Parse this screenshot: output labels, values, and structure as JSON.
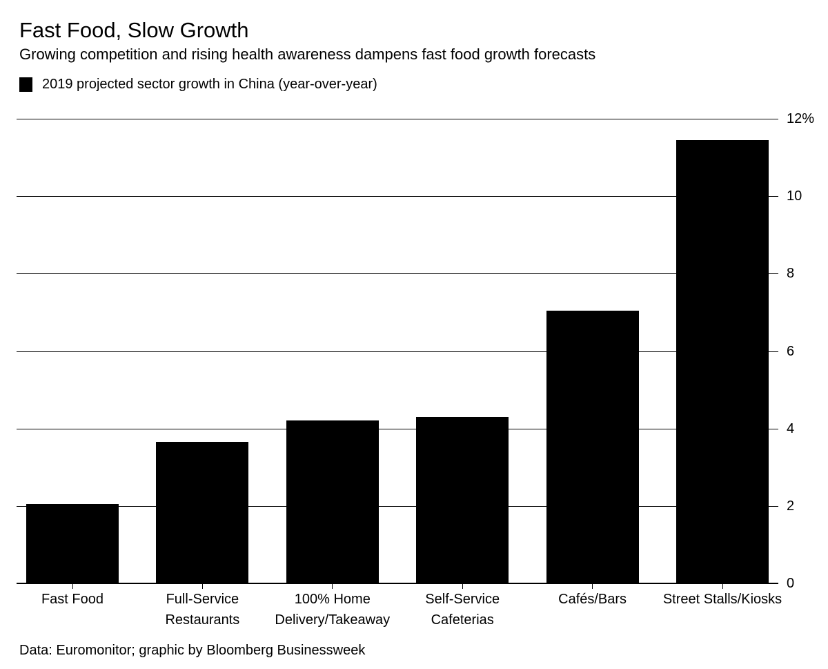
{
  "title": "Fast Food, Slow Growth",
  "subtitle": "Growing competition and rising health awareness dampens fast food growth forecasts",
  "legend": {
    "label": "2019 projected sector growth in China (year-over-year)",
    "swatch_color": "#000000"
  },
  "source": "Data: Euromonitor; graphic by Bloomberg Businessweek",
  "chart_data": {
    "type": "bar",
    "title": "Fast Food, Slow Growth",
    "subtitle": "Growing competition and rising health awareness dampens fast food growth forecasts",
    "series_name": "2019 projected sector growth in China (year-over-year)",
    "categories": [
      "Fast Food",
      "Full-Service Restaurants",
      "100% Home Delivery/Takeaway",
      "Self-Service Cafeterias",
      "Cafés/Bars",
      "Street Stalls/Kiosks"
    ],
    "category_lines": [
      [
        "Fast Food"
      ],
      [
        "Full-Service",
        "Restaurants"
      ],
      [
        "100% Home",
        "Delivery/Takeaway"
      ],
      [
        "Self-Service",
        "Cafeterias"
      ],
      [
        "Cafés/Bars"
      ],
      [
        "Street Stalls/Kiosks"
      ]
    ],
    "values": [
      2.05,
      3.65,
      4.2,
      4.3,
      7.05,
      11.45
    ],
    "xlabel": "",
    "ylabel": "",
    "ylim": [
      0,
      12
    ],
    "yticks": [
      0,
      2,
      4,
      6,
      8,
      10,
      12
    ],
    "ytick_labels": [
      "0",
      "2",
      "4",
      "6",
      "8",
      "10",
      "12%"
    ],
    "bar_color": "#000000",
    "grid_color": "#000000",
    "grid": true,
    "legend_position": "top-left"
  }
}
